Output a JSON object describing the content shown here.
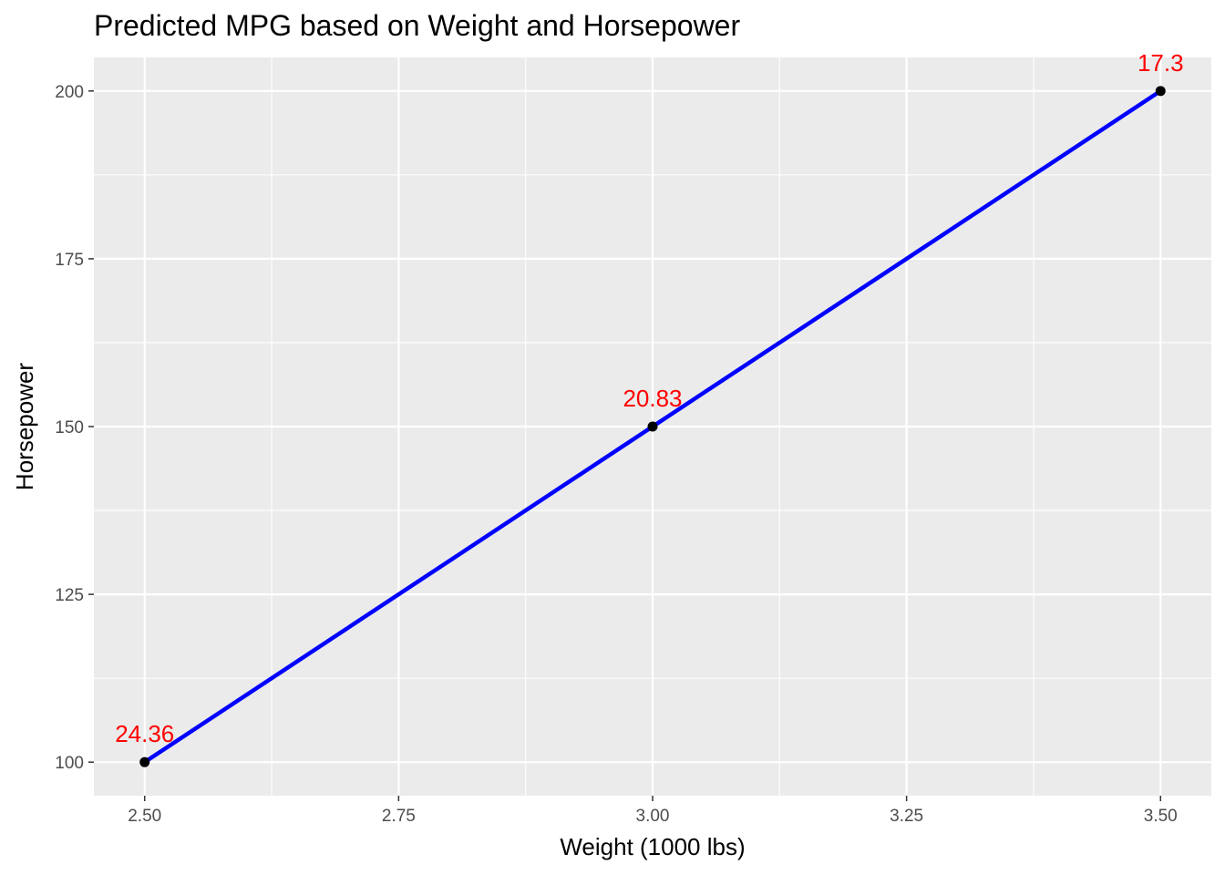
{
  "chart_data": {
    "type": "line",
    "title": "Predicted MPG based on Weight and Horsepower",
    "xlabel": "Weight (1000 lbs)",
    "ylabel": "Horsepower",
    "xlim": [
      2.45,
      3.55
    ],
    "ylim": [
      95,
      205
    ],
    "x_ticks": [
      2.5,
      2.75,
      3.0,
      3.25,
      3.5
    ],
    "x_tick_labels": [
      "2.50",
      "2.75",
      "3.00",
      "3.25",
      "3.50"
    ],
    "y_ticks": [
      100,
      125,
      150,
      175,
      200
    ],
    "y_tick_labels": [
      "100",
      "125",
      "150",
      "175",
      "200"
    ],
    "grid": true,
    "legend": "none",
    "series": [
      {
        "x": [
          2.5,
          3.0,
          3.5
        ],
        "y": [
          100,
          150,
          200
        ],
        "labels": [
          "24.36",
          "20.83",
          "17.3"
        ]
      }
    ],
    "colors": {
      "line": "#0000ff",
      "point": "#000000",
      "data_label": "#ff0000",
      "panel_background": "#ebebeb",
      "grid": "#ffffff"
    }
  }
}
